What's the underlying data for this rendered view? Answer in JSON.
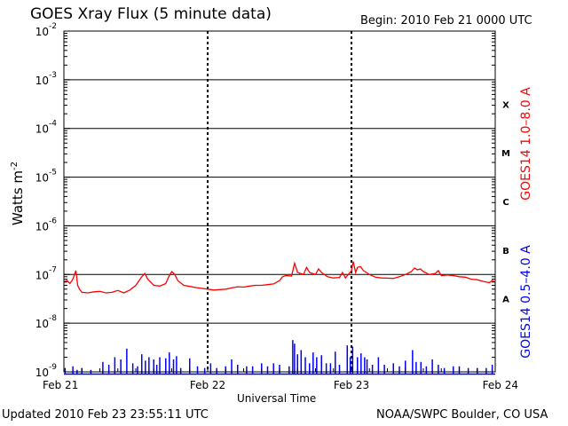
{
  "header": {
    "title": "GOES Xray Flux (5 minute data)",
    "begin": "Begin:  2010 Feb 21 0000 UTC"
  },
  "footer": {
    "updated": "Updated 2010 Feb 23 23:55:11 UTC",
    "credit": "NOAA/SWPC Boulder, CO USA"
  },
  "colors": {
    "long_channel": "#ff0000",
    "short_channel": "#0000ff",
    "grid": "#000000"
  },
  "chart_data": {
    "type": "line",
    "xlabel": "Universal Time",
    "ylabel_base": "Watts m",
    "ylabel_exp": "-2",
    "yscale": "log",
    "ylim": [
      1e-09,
      0.01
    ],
    "xlim": [
      0,
      72
    ],
    "x_unit": "hours since 2010 Feb 21 0000 UTC",
    "x_ticks": [
      {
        "x": 0,
        "label": "Feb 21"
      },
      {
        "x": 24,
        "label": "Feb 22"
      },
      {
        "x": 48,
        "label": "Feb 23"
      },
      {
        "x": 72,
        "label": "Feb 24"
      }
    ],
    "y_ticks": [
      {
        "exp": -9,
        "label": "10",
        "sup": "-9"
      },
      {
        "exp": -8,
        "label": "10",
        "sup": "-8"
      },
      {
        "exp": -7,
        "label": "10",
        "sup": "-7"
      },
      {
        "exp": -6,
        "label": "10",
        "sup": "-6"
      },
      {
        "exp": -5,
        "label": "10",
        "sup": "-5"
      },
      {
        "exp": -4,
        "label": "10",
        "sup": "-4"
      },
      {
        "exp": -3,
        "label": "10",
        "sup": "-3"
      },
      {
        "exp": -2,
        "label": "10",
        "sup": "-2"
      }
    ],
    "flare_classes": [
      {
        "label": "A",
        "exp": -7.5
      },
      {
        "label": "B",
        "exp": -6.5
      },
      {
        "label": "C",
        "exp": -5.5
      },
      {
        "label": "M",
        "exp": -4.5
      },
      {
        "label": "X",
        "exp": -3.5
      }
    ],
    "series": [
      {
        "name": "GOES14 1.0–8.0 A",
        "color": "#ff0000",
        "points": [
          [
            0,
            7e-08
          ],
          [
            0.5,
            7.5e-08
          ],
          [
            1,
            6.5e-08
          ],
          [
            1.5,
            8e-08
          ],
          [
            2,
            1.2e-07
          ],
          [
            2.3,
            6e-08
          ],
          [
            2.6,
            5e-08
          ],
          [
            3,
            4.3e-08
          ],
          [
            4,
            4.2e-08
          ],
          [
            5,
            4.4e-08
          ],
          [
            6,
            4.5e-08
          ],
          [
            7,
            4.2e-08
          ],
          [
            8,
            4.3e-08
          ],
          [
            9,
            4.7e-08
          ],
          [
            10,
            4.2e-08
          ],
          [
            11,
            4.8e-08
          ],
          [
            12,
            6e-08
          ],
          [
            13,
            9e-08
          ],
          [
            13.5,
            1.05e-07
          ],
          [
            14,
            8e-08
          ],
          [
            15,
            6e-08
          ],
          [
            16,
            5.8e-08
          ],
          [
            17,
            6.5e-08
          ],
          [
            17.5,
            9e-08
          ],
          [
            18,
            1.15e-07
          ],
          [
            18.5,
            1e-07
          ],
          [
            19,
            7.5e-08
          ],
          [
            20,
            6e-08
          ],
          [
            21,
            5.7e-08
          ],
          [
            22,
            5.4e-08
          ],
          [
            23,
            5.2e-08
          ],
          [
            24,
            5e-08
          ],
          [
            25,
            4.8e-08
          ],
          [
            26,
            4.9e-08
          ],
          [
            27,
            5e-08
          ],
          [
            28,
            5.3e-08
          ],
          [
            29,
            5.6e-08
          ],
          [
            30,
            5.5e-08
          ],
          [
            31,
            5.8e-08
          ],
          [
            32,
            6e-08
          ],
          [
            33,
            6e-08
          ],
          [
            34,
            6.2e-08
          ],
          [
            35,
            6.4e-08
          ],
          [
            36,
            7.5e-08
          ],
          [
            36.5,
            9e-08
          ],
          [
            37,
            9.5e-08
          ],
          [
            38,
            9.3e-08
          ],
          [
            38.5,
            1.7e-07
          ],
          [
            39,
            1.1e-07
          ],
          [
            40,
            1e-07
          ],
          [
            40.5,
            1.4e-07
          ],
          [
            41,
            1.1e-07
          ],
          [
            42,
            1e-07
          ],
          [
            42.5,
            1.3e-07
          ],
          [
            43,
            1.1e-07
          ],
          [
            44,
            9e-08
          ],
          [
            45,
            8.5e-08
          ],
          [
            46,
            8.7e-08
          ],
          [
            46.5,
            1.1e-07
          ],
          [
            47,
            8.5e-08
          ],
          [
            48,
            1.2e-07
          ],
          [
            48.3,
            1.85e-07
          ],
          [
            48.7,
            1.1e-07
          ],
          [
            49,
            1.4e-07
          ],
          [
            49.5,
            1.45e-07
          ],
          [
            50,
            1.2e-07
          ],
          [
            51,
            1e-07
          ],
          [
            52,
            8.8e-08
          ],
          [
            53,
            8.5e-08
          ],
          [
            54,
            8.4e-08
          ],
          [
            55,
            8.3e-08
          ],
          [
            56,
            9e-08
          ],
          [
            57,
            1e-07
          ],
          [
            58,
            1.15e-07
          ],
          [
            58.5,
            1.35e-07
          ],
          [
            59,
            1.25e-07
          ],
          [
            59.5,
            1.3e-07
          ],
          [
            60,
            1.15e-07
          ],
          [
            61,
            1e-07
          ],
          [
            62,
            1.05e-07
          ],
          [
            62.5,
            1.2e-07
          ],
          [
            63,
            9.5e-08
          ],
          [
            64,
            9.8e-08
          ],
          [
            65,
            9.5e-08
          ],
          [
            66,
            9e-08
          ],
          [
            67,
            8.8e-08
          ],
          [
            68,
            8e-08
          ],
          [
            69,
            7.8e-08
          ],
          [
            70,
            7.2e-08
          ],
          [
            71,
            6.8e-08
          ],
          [
            71.5,
            7.5e-08
          ],
          [
            72,
            7e-08
          ]
        ]
      },
      {
        "name": "GOES14 0.5–4.0 A",
        "color": "#0000ff",
        "baseline": 9e-10,
        "points": [
          [
            0.2,
            1.2e-09
          ],
          [
            1.5,
            1.3e-09
          ],
          [
            2.2,
            1.1e-09
          ],
          [
            3,
            1.2e-09
          ],
          [
            4.5,
            1.1e-09
          ],
          [
            6.5,
            1.6e-09
          ],
          [
            7.5,
            1.4e-09
          ],
          [
            8.5,
            2e-09
          ],
          [
            9.5,
            1.8e-09
          ],
          [
            10.5,
            3e-09
          ],
          [
            11.5,
            1.5e-09
          ],
          [
            12.3,
            1.3e-09
          ],
          [
            13,
            2.3e-09
          ],
          [
            13.6,
            1.7e-09
          ],
          [
            14.2,
            2e-09
          ],
          [
            15,
            1.8e-09
          ],
          [
            15.5,
            1.4e-09
          ],
          [
            16,
            2e-09
          ],
          [
            17,
            1.9e-09
          ],
          [
            17.6,
            2.5e-09
          ],
          [
            18.3,
            1.8e-09
          ],
          [
            18.8,
            2.1e-09
          ],
          [
            19.5,
            1.2e-09
          ],
          [
            21,
            1.9e-09
          ],
          [
            22.3,
            1.3e-09
          ],
          [
            23.5,
            1.2e-09
          ],
          [
            24.5,
            1.5e-09
          ],
          [
            25.5,
            1.2e-09
          ],
          [
            27,
            1.3e-09
          ],
          [
            28,
            1.8e-09
          ],
          [
            29,
            1.4e-09
          ],
          [
            30.5,
            1.3e-09
          ],
          [
            31.5,
            1.3e-09
          ],
          [
            33,
            1.5e-09
          ],
          [
            34,
            1.3e-09
          ],
          [
            35,
            1.5e-09
          ],
          [
            36,
            1.4e-09
          ],
          [
            37.6,
            1.3e-09
          ],
          [
            38.2,
            4.5e-09
          ],
          [
            38.5,
            3.8e-09
          ],
          [
            39,
            2.3e-09
          ],
          [
            39.6,
            2.8e-09
          ],
          [
            40.3,
            2e-09
          ],
          [
            41,
            1.5e-09
          ],
          [
            41.6,
            2.5e-09
          ],
          [
            42.2,
            2e-09
          ],
          [
            43,
            2.2e-09
          ],
          [
            43.8,
            1.5e-09
          ],
          [
            44.5,
            1.5e-09
          ],
          [
            45.3,
            2.6e-09
          ],
          [
            46,
            1.4e-09
          ],
          [
            47.3,
            3.5e-09
          ],
          [
            47.8,
            2e-09
          ],
          [
            48.2,
            3.3e-09
          ],
          [
            49,
            2e-09
          ],
          [
            49.6,
            2.4e-09
          ],
          [
            50.2,
            2e-09
          ],
          [
            50.6,
            1.8e-09
          ],
          [
            51.5,
            1.4e-09
          ],
          [
            52.5,
            2e-09
          ],
          [
            53.5,
            1.4e-09
          ],
          [
            55,
            1.5e-09
          ],
          [
            56,
            1.3e-09
          ],
          [
            57,
            1.7e-09
          ],
          [
            58.2,
            2.8e-09
          ],
          [
            58.8,
            1.6e-09
          ],
          [
            59.6,
            1.6e-09
          ],
          [
            60.5,
            1.3e-09
          ],
          [
            61.5,
            1.8e-09
          ],
          [
            62.5,
            1.4e-09
          ],
          [
            63.5,
            1.2e-09
          ],
          [
            65,
            1.3e-09
          ],
          [
            66,
            1.3e-09
          ],
          [
            67.5,
            1.2e-09
          ],
          [
            69,
            1.2e-09
          ],
          [
            70.5,
            1.2e-09
          ],
          [
            71.5,
            1.4e-09
          ]
        ]
      }
    ]
  }
}
